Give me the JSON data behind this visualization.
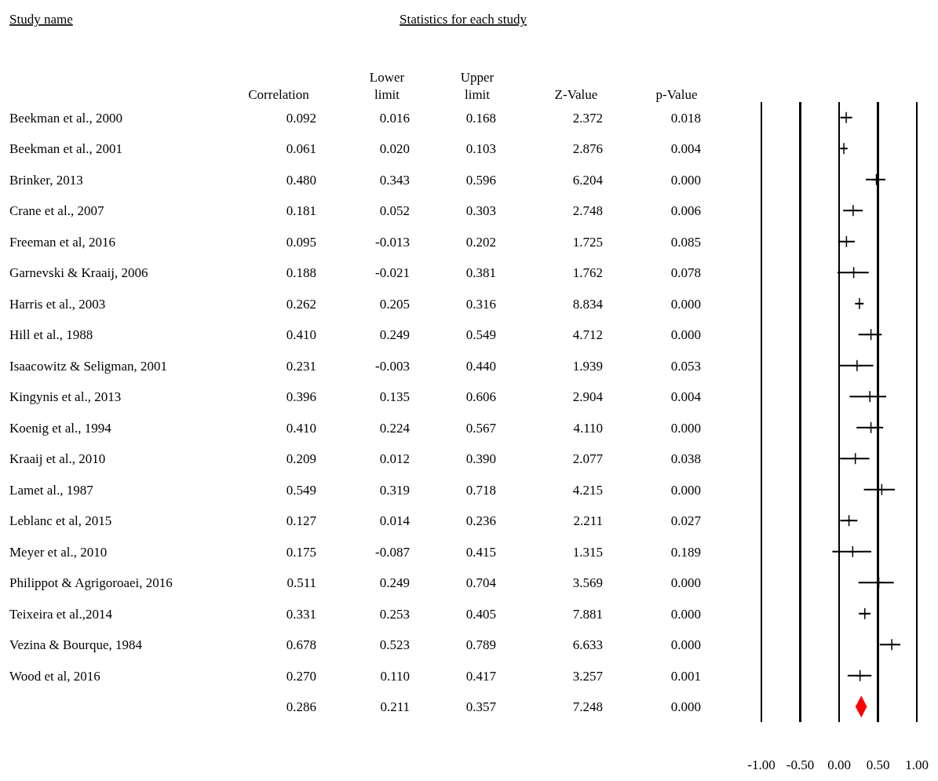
{
  "chart_data": [
    {
      "type": "other",
      "title": "Statistics for each study",
      "ylabel": "Study name",
      "categories": [
        "Correlation",
        "Lower limit",
        "Upper limit",
        "Z-Value",
        "p-Value"
      ],
      "y_categories": [
        "Beekman et al., 2000",
        "Beekman et al., 2001",
        "Brinker, 2013",
        "Crane et al., 2007",
        "Freeman et al, 2016",
        "Garnevski & Kraaij, 2006",
        "Harris et al., 2003",
        "Hill et al., 1988",
        "Isaacowitz & Seligman, 2001",
        "Kingynis et al., 2013",
        "Koenig et al., 1994",
        "Kraaij et al., 2010",
        "Lamet al., 1987",
        "Leblanc et al, 2015",
        "Meyer et al., 2010",
        "Philippot & Agrigoroaei, 2016",
        "Teixeira et al.,2014",
        "Vezina & Bourque, 1984",
        "Wood et al, 2016",
        null
      ],
      "cell_labels": [
        [
          "0.092",
          "0.016",
          "0.168",
          "2.372",
          "0.018"
        ],
        [
          "0.061",
          "0.020",
          "0.103",
          "2.876",
          "0.004"
        ],
        [
          "0.480",
          "0.343",
          "0.596",
          "6.204",
          "0.000"
        ],
        [
          "0.181",
          "0.052",
          "0.303",
          "2.748",
          "0.006"
        ],
        [
          "0.095",
          "-0.013",
          "0.202",
          "1.725",
          "0.085"
        ],
        [
          "0.188",
          "-0.021",
          "0.381",
          "1.762",
          "0.078"
        ],
        [
          "0.262",
          "0.205",
          "0.316",
          "8.834",
          "0.000"
        ],
        [
          "0.410",
          "0.249",
          "0.549",
          "4.712",
          "0.000"
        ],
        [
          "0.231",
          "-0.003",
          "0.440",
          "1.939",
          "0.053"
        ],
        [
          "0.396",
          "0.135",
          "0.606",
          "2.904",
          "0.004"
        ],
        [
          "0.410",
          "0.224",
          "0.567",
          "4.110",
          "0.000"
        ],
        [
          "0.209",
          "0.012",
          "0.390",
          "2.077",
          "0.038"
        ],
        [
          "0.549",
          "0.319",
          "0.718",
          "4.215",
          "0.000"
        ],
        [
          "0.127",
          "0.014",
          "0.236",
          "2.211",
          "0.027"
        ],
        [
          "0.175",
          "-0.087",
          "0.415",
          "1.315",
          "0.189"
        ],
        [
          "0.511",
          "0.249",
          "0.704",
          "3.569",
          "0.000"
        ],
        [
          "0.331",
          "0.253",
          "0.405",
          "7.881",
          "0.000"
        ],
        [
          "0.678",
          "0.523",
          "0.789",
          "6.633",
          "0.000"
        ],
        [
          "0.270",
          "0.110",
          "0.417",
          "3.257",
          "0.001"
        ],
        [
          "0.286",
          "0.211",
          "0.357",
          "7.248",
          "0.000"
        ]
      ]
    },
    {
      "type": "scatter",
      "orientation": "horizontal",
      "categories": [
        null,
        null,
        null,
        null,
        null,
        null,
        null,
        null,
        null,
        null,
        null,
        null,
        null,
        null,
        null,
        null,
        null,
        null,
        null,
        null
      ],
      "xlim": [
        -1,
        1
      ],
      "xticks": [
        {
          "value": -1,
          "label": "-1.00"
        },
        {
          "value": -0.5,
          "label": "-0.50"
        },
        {
          "value": 0,
          "label": "0.00"
        },
        {
          "value": 0.5,
          "label": "0.50"
        },
        {
          "value": 1,
          "label": "1.00"
        }
      ],
      "grid": "x",
      "tick_labels": "x",
      "series": [
        {
          "color": "#000000",
          "marker": "cross",
          "values": [
            0.092,
            0.061,
            0.48,
            0.181,
            0.095,
            0.188,
            0.262,
            0.41,
            0.231,
            0.396,
            0.41,
            0.209,
            0.549,
            0.127,
            0.175,
            0.511,
            0.331,
            0.678,
            0.27,
            null
          ],
          "errors": [
            [
              0.016,
              0.168
            ],
            [
              0.02,
              0.103
            ],
            [
              0.343,
              0.596
            ],
            [
              0.052,
              0.303
            ],
            [
              -0.013,
              0.202
            ],
            [
              -0.021,
              0.381
            ],
            [
              0.205,
              0.316
            ],
            [
              0.249,
              0.549
            ],
            [
              -0.003,
              0.44
            ],
            [
              0.135,
              0.606
            ],
            [
              0.224,
              0.567
            ],
            [
              0.012,
              0.39
            ],
            [
              0.319,
              0.718
            ],
            [
              0.014,
              0.236
            ],
            [
              -0.087,
              0.415
            ],
            [
              0.249,
              0.704
            ],
            [
              0.253,
              0.405
            ],
            [
              0.523,
              0.789
            ],
            [
              0.11,
              0.417
            ],
            null
          ]
        },
        {
          "color": "#ff0000",
          "marker": "diamond",
          "values": [
            null,
            null,
            null,
            null,
            null,
            null,
            null,
            null,
            null,
            null,
            null,
            null,
            null,
            null,
            null,
            null,
            null,
            null,
            null,
            0.286
          ],
          "errors": [
            null,
            null,
            null,
            null,
            null,
            null,
            null,
            null,
            null,
            null,
            null,
            null,
            null,
            null,
            null,
            null,
            null,
            null,
            null,
            [
              0.211,
              0.357
            ]
          ]
        }
      ]
    }
  ]
}
